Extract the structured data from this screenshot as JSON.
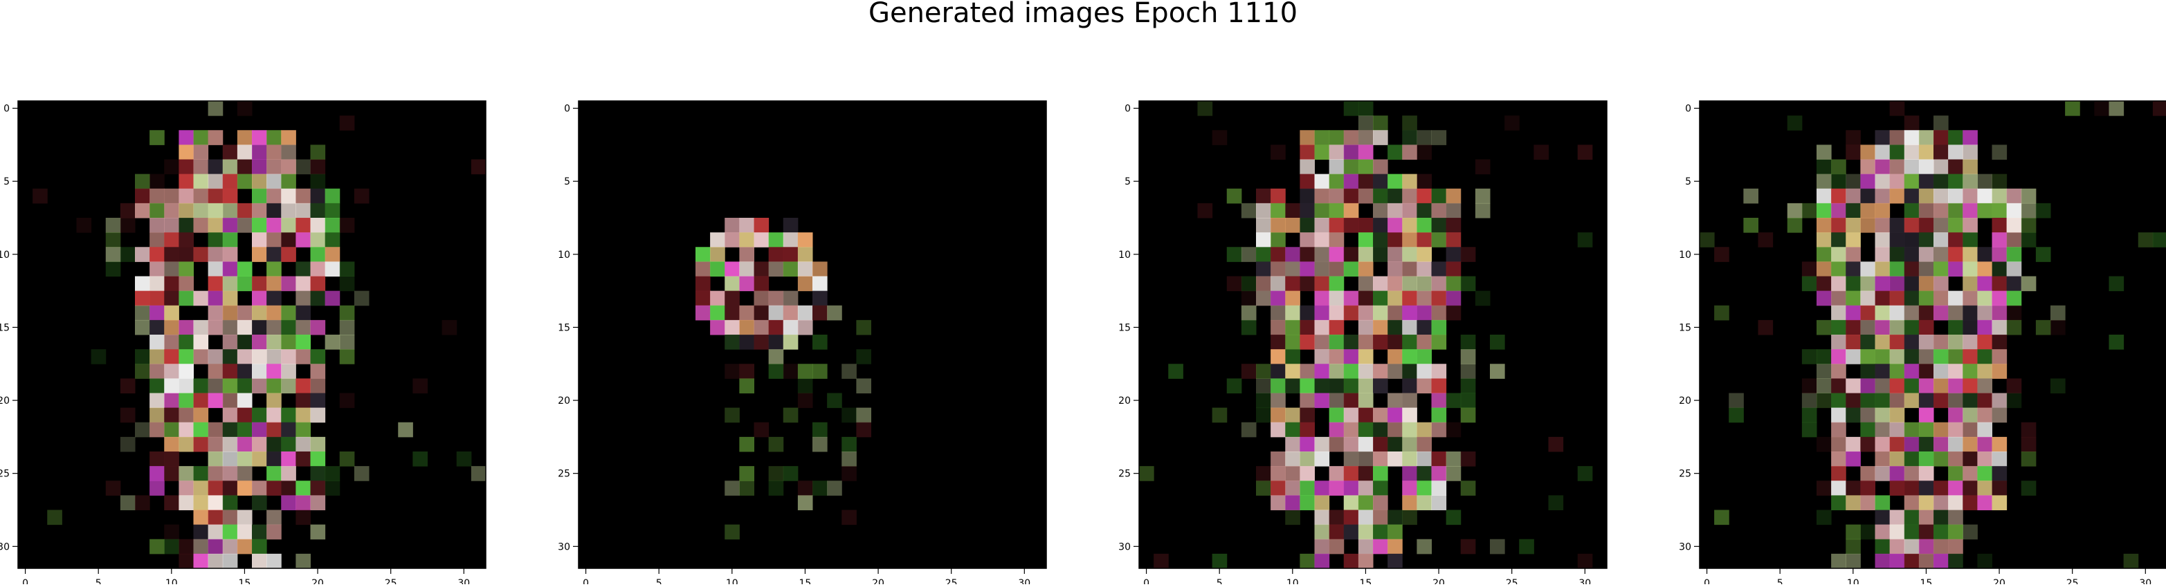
{
  "figure": {
    "title": "Generated images Epoch 1110",
    "background_color": "#ffffff",
    "panel_background_color": "#000000"
  },
  "panels": [
    {
      "name": "generated-image-1",
      "grid_size": 32
    },
    {
      "name": "generated-image-2",
      "grid_size": 32
    },
    {
      "name": "generated-image-3",
      "grid_size": 32
    },
    {
      "name": "generated-image-4",
      "grid_size": 32
    }
  ],
  "axes": {
    "xticks": [
      "0",
      "5",
      "10",
      "15",
      "20",
      "25",
      "30"
    ],
    "yticks": [
      "0",
      "5",
      "10",
      "15",
      "20",
      "25",
      "30"
    ]
  },
  "palette": [
    "#f4e6e0",
    "#e9c5c8",
    "#d8a0a6",
    "#c98f8b",
    "#b07a72",
    "#8d7a6c",
    "#d9c27d",
    "#e8a268",
    "#c43a3a",
    "#7a1c22",
    "#4a1418",
    "#c4d49a",
    "#6aa83a",
    "#2a6a1e",
    "#1c3a18",
    "#5ad24a",
    "#b83ab8",
    "#e455c8",
    "#efefef",
    "#2a2430"
  ]
}
